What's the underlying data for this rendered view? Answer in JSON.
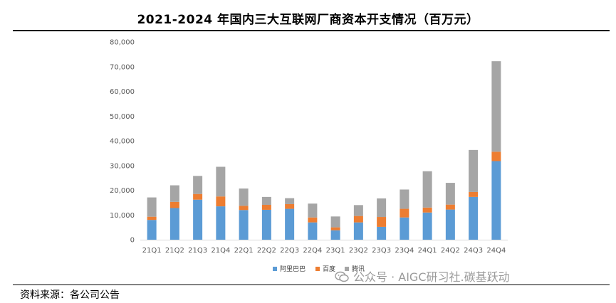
{
  "header": {
    "title": "2021-2024 年国内三大互联网厂商资本开支情况（百万元）"
  },
  "footer": {
    "source": "资料来源：各公司公告"
  },
  "watermark": {
    "text": "公众号 · AIGC研习社.碳基跃动",
    "icon": "wechat-icon"
  },
  "chart_data": {
    "type": "bar",
    "stacked": true,
    "title": "2021-2024 年国内三大互联网厂商资本开支情况（百万元）",
    "categories": [
      "21Q1",
      "21Q2",
      "21Q3",
      "21Q4",
      "22Q1",
      "22Q2",
      "22Q3",
      "22Q4",
      "23Q1",
      "23Q2",
      "23Q3",
      "23Q4",
      "24Q1",
      "24Q2",
      "24Q3",
      "24Q4"
    ],
    "series": [
      {
        "name": "阿里巴巴",
        "color": "#5B9BD5",
        "values": [
          8000,
          12800,
          16200,
          13500,
          12000,
          12100,
          12500,
          7000,
          3800,
          7000,
          5200,
          9000,
          11000,
          12200,
          17300,
          31800
        ]
      },
      {
        "name": "百度",
        "color": "#ED7D31",
        "values": [
          1300,
          2500,
          2300,
          4000,
          1700,
          2000,
          1900,
          2000,
          1200,
          2600,
          4000,
          3500,
          2000,
          2000,
          2000,
          3800
        ]
      },
      {
        "name": "腾讯",
        "color": "#A5A5A5",
        "values": [
          7800,
          6700,
          7300,
          12000,
          7000,
          3200,
          2400,
          5600,
          4400,
          4400,
          7500,
          7800,
          14700,
          8800,
          17000,
          36600
        ]
      }
    ],
    "y_ticks": [
      "0",
      "10,000",
      "20,000",
      "30,000",
      "40,000",
      "50,000",
      "60,000",
      "70,000",
      "80,000"
    ],
    "ylim": [
      0,
      80000
    ],
    "grid": false,
    "legend_position": "bottom-center"
  }
}
